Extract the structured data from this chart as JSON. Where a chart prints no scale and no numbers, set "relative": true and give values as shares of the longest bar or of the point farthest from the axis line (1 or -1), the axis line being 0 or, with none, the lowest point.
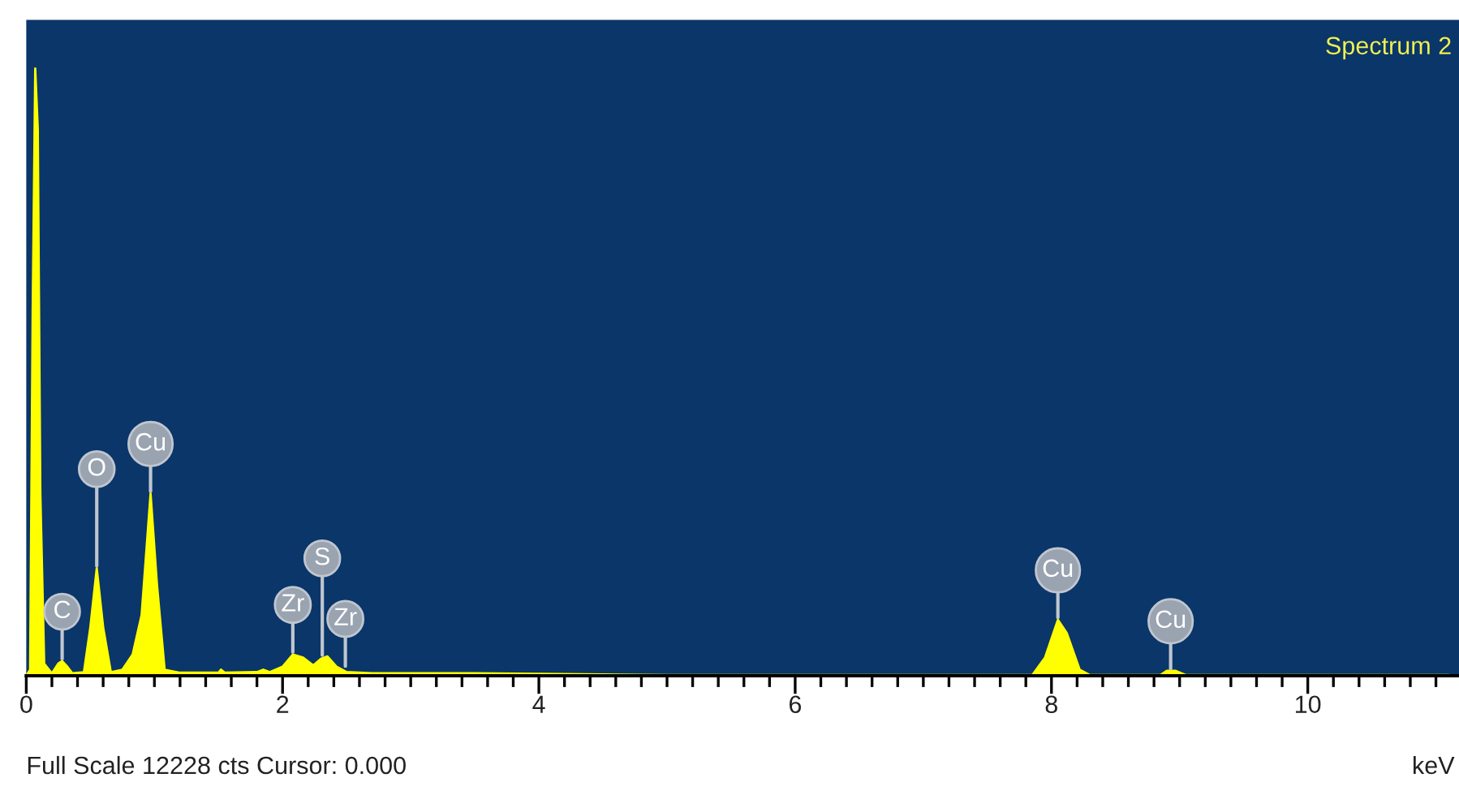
{
  "chart_data": {
    "type": "area",
    "title": "Spectrum 2",
    "xlabel": "keV",
    "relative": true,
    "tick_labels": "x",
    "grid": false,
    "xlim": [
      0,
      11.18
    ],
    "xticks": [
      0,
      {
        "value": 0.2,
        "label": null
      },
      {
        "value": 0.4,
        "label": null
      },
      {
        "value": 0.6,
        "label": null
      },
      {
        "value": 0.8,
        "label": null
      },
      {
        "value": 1.0,
        "label": null
      },
      {
        "value": 1.2,
        "label": null
      },
      {
        "value": 1.4,
        "label": null
      },
      {
        "value": 1.6,
        "label": null
      },
      {
        "value": 1.8,
        "label": null
      },
      2,
      {
        "value": 2.2,
        "label": null
      },
      {
        "value": 2.4,
        "label": null
      },
      {
        "value": 2.6,
        "label": null
      },
      {
        "value": 2.8,
        "label": null
      },
      {
        "value": 3.0,
        "label": null
      },
      {
        "value": 3.2,
        "label": null
      },
      {
        "value": 3.4,
        "label": null
      },
      {
        "value": 3.6,
        "label": null
      },
      {
        "value": 3.8,
        "label": null
      },
      4,
      {
        "value": 4.2,
        "label": null
      },
      {
        "value": 4.4,
        "label": null
      },
      {
        "value": 4.6,
        "label": null
      },
      {
        "value": 4.8,
        "label": null
      },
      {
        "value": 5.0,
        "label": null
      },
      {
        "value": 5.2,
        "label": null
      },
      {
        "value": 5.4,
        "label": null
      },
      {
        "value": 5.6,
        "label": null
      },
      {
        "value": 5.8,
        "label": null
      },
      6,
      {
        "value": 6.2,
        "label": null
      },
      {
        "value": 6.4,
        "label": null
      },
      {
        "value": 6.6,
        "label": null
      },
      {
        "value": 6.8,
        "label": null
      },
      {
        "value": 7.0,
        "label": null
      },
      {
        "value": 7.2,
        "label": null
      },
      {
        "value": 7.4,
        "label": null
      },
      {
        "value": 7.6,
        "label": null
      },
      {
        "value": 7.8,
        "label": null
      },
      8,
      {
        "value": 8.2,
        "label": null
      },
      {
        "value": 8.4,
        "label": null
      },
      {
        "value": 8.6,
        "label": null
      },
      {
        "value": 8.8,
        "label": null
      },
      {
        "value": 9.0,
        "label": null
      },
      {
        "value": 9.2,
        "label": null
      },
      {
        "value": 9.4,
        "label": null
      },
      {
        "value": 9.6,
        "label": null
      },
      {
        "value": 9.8,
        "label": null
      },
      10,
      {
        "value": 10.2,
        "label": null
      },
      {
        "value": 10.4,
        "label": null
      },
      {
        "value": 10.6,
        "label": null
      },
      {
        "value": 10.8,
        "label": null
      },
      {
        "value": 11.0,
        "label": null
      }
    ],
    "series": [
      {
        "color": "#ffff00",
        "x": [
          0,
          0.03,
          0.05,
          0.07,
          0.09,
          0.11,
          0.14,
          0.2,
          0.25,
          0.28,
          0.32,
          0.36,
          0.45,
          0.5,
          0.55,
          0.6,
          0.66,
          0.75,
          0.83,
          0.9,
          0.97,
          1.02,
          1.08,
          1.2,
          1.5,
          1.52,
          1.55,
          1.8,
          1.85,
          1.9,
          2.0,
          2.08,
          2.16,
          2.24,
          2.3,
          2.35,
          2.42,
          2.5,
          2.7,
          3.5,
          4.0,
          4.5,
          5.0,
          7.85,
          7.95,
          8.05,
          8.12,
          8.22,
          8.3,
          8.85,
          8.9,
          8.97,
          9.05,
          11.1
        ],
        "values": [
          0,
          0.01,
          0.6,
          1,
          0.9,
          0.3,
          0.02,
          0.004,
          0.02,
          0.024,
          0.015,
          0.004,
          0.006,
          0.08,
          0.177,
          0.08,
          0.006,
          0.01,
          0.035,
          0.1,
          0.3,
          0.15,
          0.01,
          0.005,
          0.005,
          0.01,
          0.005,
          0.006,
          0.01,
          0.006,
          0.015,
          0.035,
          0.03,
          0.017,
          0.028,
          0.032,
          0.015,
          0.006,
          0.004,
          0.004,
          0.003,
          0.002,
          0.001,
          0.001,
          0.03,
          0.092,
          0.07,
          0.01,
          0.001,
          0.001,
          0.008,
          0.008,
          0.001,
          0.001
        ]
      }
    ],
    "annotations": [
      {
        "text": "C",
        "x": 0.28,
        "y": 0.024
      },
      {
        "text": "O",
        "x": 0.55,
        "y": 0.177
      },
      {
        "text": "Cu",
        "x": 0.97,
        "y": 0.3
      },
      {
        "text": "Zr",
        "x": 2.08,
        "y": 0.035
      },
      {
        "text": "S",
        "x": 2.31,
        "y": 0.03
      },
      {
        "text": "Zr",
        "x": 2.49,
        "y": 0.012
      },
      {
        "text": "Cu",
        "x": 8.05,
        "y": 0.092
      },
      {
        "text": "Cu",
        "x": 8.93,
        "y": 0.008
      },
      "Full Scale 12228 cts Cursor: 0.000"
    ]
  }
}
